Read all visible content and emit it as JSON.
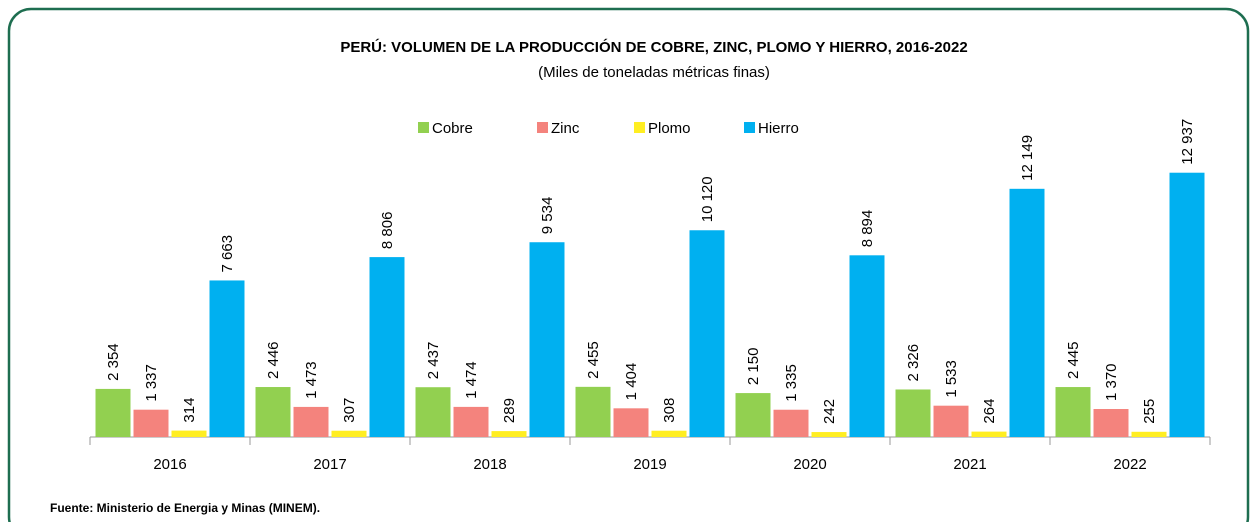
{
  "chart_data": {
    "type": "bar",
    "title": "PERÚ: VOLUMEN DE LA PRODUCCIÓN DE COBRE, ZINC, PLOMO Y HIERRO, 2016-2022",
    "subtitle": "(Miles de toneladas métricas finas)",
    "categories": [
      "2016",
      "2017",
      "2018",
      "2019",
      "2020",
      "2021",
      "2022"
    ],
    "series": [
      {
        "name": "Cobre",
        "color": "#92d050",
        "values": [
          2354,
          2446,
          2437,
          2455,
          2150,
          2326,
          2445
        ],
        "value_labels": [
          "2 354",
          "2 446",
          "2 437",
          "2 455",
          "2 150",
          "2 326",
          "2 445"
        ]
      },
      {
        "name": "Zinc",
        "color": "#f4837d",
        "values": [
          1337,
          1473,
          1474,
          1404,
          1335,
          1533,
          1370
        ],
        "value_labels": [
          "1 337",
          "1 473",
          "1 474",
          "1 404",
          "1 335",
          "1 533",
          "1 370"
        ]
      },
      {
        "name": "Plomo",
        "color": "#ffee22",
        "values": [
          314,
          307,
          289,
          308,
          242,
          264,
          255
        ]
      },
      {
        "name": "Hierro",
        "color": "#00b0f0",
        "values": [
          7663,
          8806,
          9534,
          10120,
          8894,
          12149,
          12937
        ],
        "value_labels": [
          "7 663",
          "8 806",
          "9 534",
          "10 120",
          "8 894",
          "12 149",
          "12 937"
        ]
      }
    ],
    "ylim": [
      0,
      14000
    ],
    "legend": "top",
    "source": "Fuente: Ministerio de Energia y Minas (MINEM)."
  }
}
